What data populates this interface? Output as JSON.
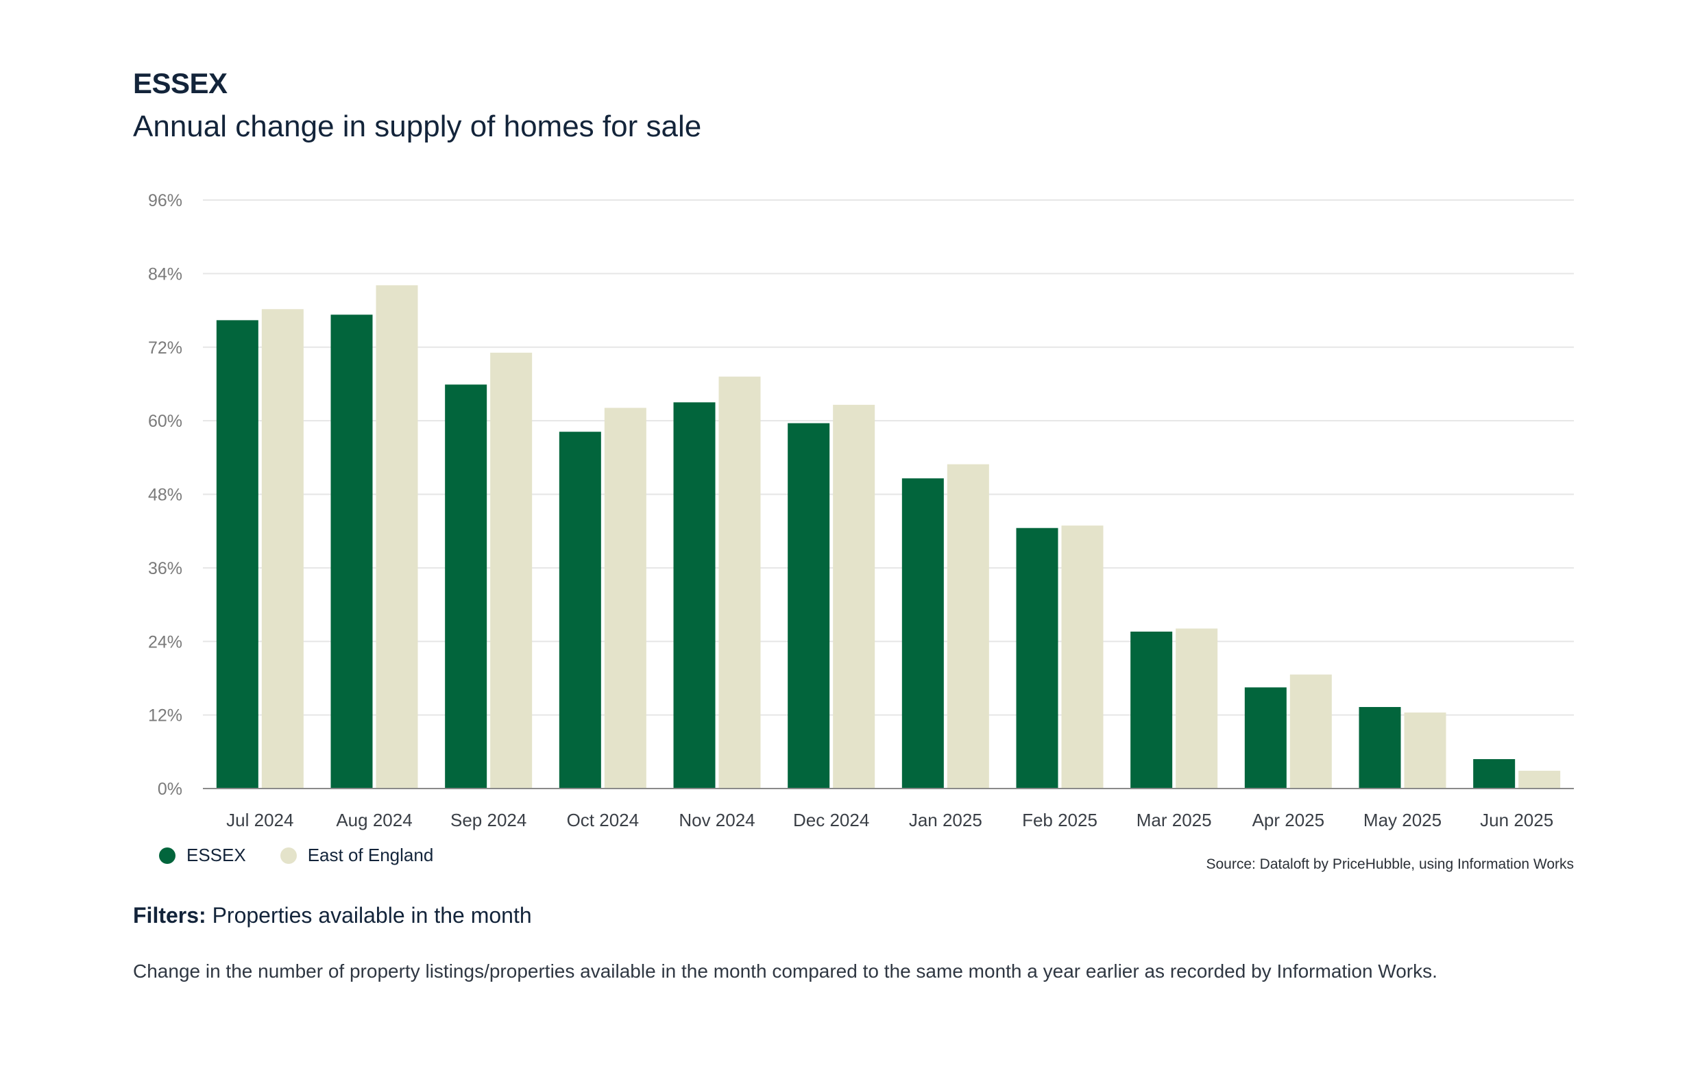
{
  "header": {
    "title": "ESSEX",
    "subtitle": "Annual change in supply of homes for sale"
  },
  "legend": {
    "essex_label": "ESSEX",
    "region_label": "East of England"
  },
  "source": "Source: Dataloft by PriceHubble, using Information Works",
  "filters": {
    "label": "Filters:",
    "value": "Properties available in the month"
  },
  "note": "Change in the number of property listings/properties available in the month compared to the same month a year earlier as recorded by Information Works.",
  "colors": {
    "essex": "#02653c",
    "region": "#e4e3ca",
    "grid": "#e6e6e6",
    "axis": "#8a8a8a",
    "tick_text": "#7a7a7a"
  },
  "chart_data": {
    "type": "bar",
    "title": "Annual change in supply of homes for sale",
    "categories": [
      "Jul 2024",
      "Aug 2024",
      "Sep 2024",
      "Oct 2024",
      "Nov 2024",
      "Dec 2024",
      "Jan 2025",
      "Feb 2025",
      "Mar 2025",
      "Apr 2025",
      "May 2025",
      "Jun 2025"
    ],
    "series": [
      {
        "name": "ESSEX",
        "values": [
          76.4,
          77.3,
          65.9,
          58.2,
          63.0,
          59.6,
          50.6,
          42.5,
          25.6,
          16.5,
          13.3,
          4.8
        ]
      },
      {
        "name": "East of England",
        "values": [
          78.2,
          82.1,
          71.1,
          62.1,
          67.2,
          62.6,
          52.9,
          42.9,
          26.1,
          18.6,
          12.4,
          2.9
        ]
      }
    ],
    "yticks": [
      "0%",
      "12%",
      "24%",
      "36%",
      "48%",
      "60%",
      "72%",
      "84%",
      "96%"
    ],
    "ylim": [
      0,
      96
    ],
    "ytick_step": 12,
    "ylabel": "",
    "xlabel": "",
    "grid": true,
    "legend_position": "bottom-left"
  }
}
